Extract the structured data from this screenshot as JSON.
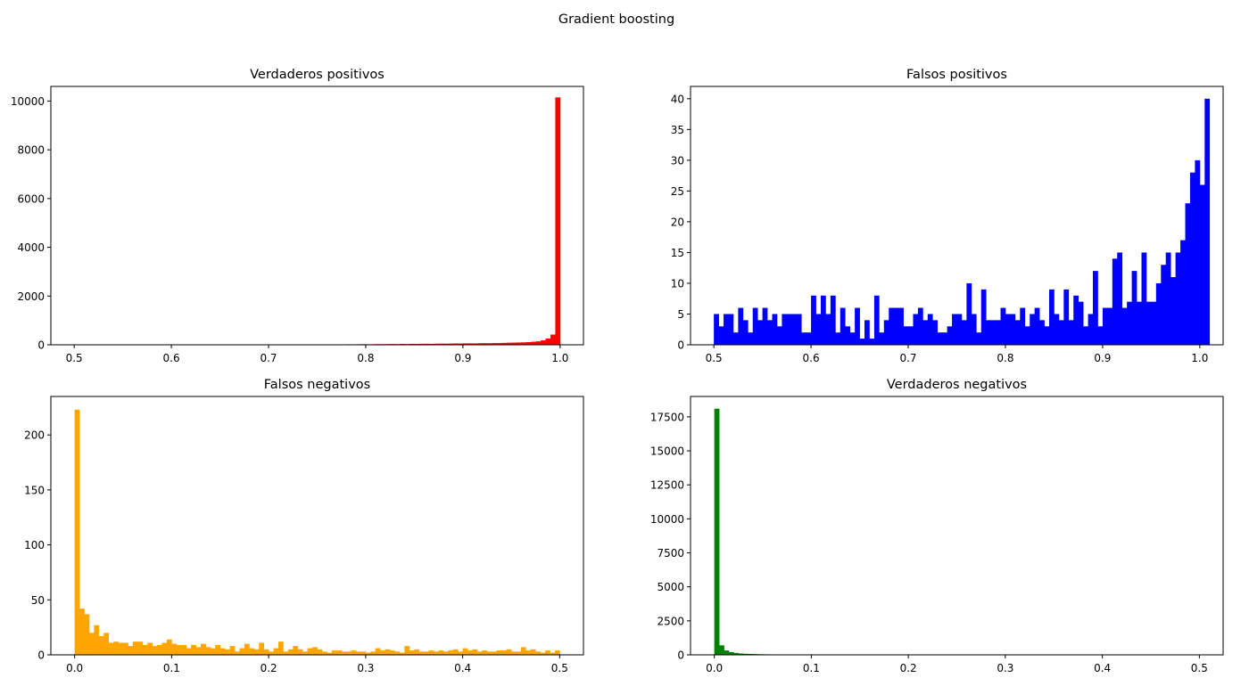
{
  "figure": {
    "suptitle": "Gradient boosting"
  },
  "chart_data": [
    {
      "type": "bar",
      "title": "Verdaderos positivos",
      "color": "#ff0000",
      "xlim": [
        0.476,
        1.024
      ],
      "ylim": [
        0,
        10600
      ],
      "xticks": [
        0.5,
        0.6,
        0.7,
        0.8,
        0.9,
        1.0
      ],
      "xtick_labels": [
        "0.5",
        "0.6",
        "0.7",
        "0.8",
        "0.9",
        "1.0"
      ],
      "yticks": [
        0,
        2000,
        4000,
        6000,
        8000,
        10000
      ],
      "ytick_labels": [
        "0",
        "2000",
        "4000",
        "6000",
        "8000",
        "10000"
      ],
      "bin_start": 0.5,
      "bin_width": 0.005,
      "values": [
        1,
        0,
        0,
        1,
        0,
        1,
        0,
        0,
        1,
        0,
        1,
        0,
        0,
        1,
        0,
        1,
        1,
        0,
        1,
        2,
        1,
        0,
        1,
        1,
        2,
        1,
        2,
        1,
        2,
        3,
        2,
        3,
        1,
        2,
        3,
        4,
        3,
        5,
        4,
        6,
        5,
        7,
        6,
        8,
        7,
        9,
        10,
        12,
        10,
        14,
        8,
        12,
        15,
        18,
        12,
        16,
        20,
        18,
        22,
        25,
        20,
        24,
        28,
        26,
        30,
        32,
        28,
        35,
        30,
        38,
        36,
        40,
        42,
        38,
        45,
        48,
        46,
        50,
        55,
        52,
        58,
        60,
        56,
        62,
        66,
        64,
        70,
        72,
        78,
        85,
        90,
        95,
        100,
        110,
        125,
        140,
        180,
        260,
        420,
        10150
      ]
    },
    {
      "type": "bar",
      "title": "Falsos positivos",
      "color": "#0000ff",
      "xlim": [
        0.476,
        1.024
      ],
      "ylim": [
        0,
        42
      ],
      "xticks": [
        0.5,
        0.6,
        0.7,
        0.8,
        0.9,
        1.0
      ],
      "xtick_labels": [
        "0.5",
        "0.6",
        "0.7",
        "0.8",
        "0.9",
        "1.0"
      ],
      "yticks": [
        0,
        5,
        10,
        15,
        20,
        25,
        30,
        35,
        40
      ],
      "ytick_labels": [
        "0",
        "5",
        "10",
        "15",
        "20",
        "25",
        "30",
        "35",
        "40"
      ],
      "bin_start": 0.5,
      "bin_width": 0.005,
      "values": [
        5,
        3,
        5,
        5,
        2,
        6,
        4,
        2,
        6,
        4,
        6,
        4,
        5,
        3,
        5,
        5,
        5,
        5,
        2,
        2,
        8,
        5,
        8,
        5,
        8,
        2,
        6,
        3,
        2,
        6,
        1,
        4,
        1,
        8,
        2,
        4,
        6,
        6,
        6,
        3,
        3,
        5,
        6,
        4,
        5,
        4,
        2,
        2,
        3,
        5,
        5,
        4,
        10,
        5,
        2,
        9,
        4,
        4,
        4,
        6,
        5,
        5,
        4,
        6,
        3,
        5,
        6,
        4,
        3,
        9,
        5,
        4,
        9,
        4,
        8,
        7,
        3,
        5,
        12,
        3,
        6,
        6,
        14,
        15,
        6,
        7,
        12,
        7,
        15,
        7,
        7,
        10,
        13,
        15,
        11,
        15,
        17,
        23,
        28,
        30,
        26,
        40
      ]
    },
    {
      "type": "bar",
      "title": "Falsos negativos",
      "color": "#ffa500",
      "xlim": [
        -0.0245,
        0.5245
      ],
      "ylim": [
        0,
        235
      ],
      "xticks": [
        0.0,
        0.1,
        0.2,
        0.3,
        0.4,
        0.5
      ],
      "xtick_labels": [
        "0.0",
        "0.1",
        "0.2",
        "0.3",
        "0.4",
        "0.5"
      ],
      "yticks": [
        0,
        50,
        100,
        150,
        200
      ],
      "ytick_labels": [
        "0",
        "50",
        "100",
        "150",
        "200"
      ],
      "bin_start": 0.0,
      "bin_width": 0.005,
      "values": [
        223,
        42,
        37,
        20,
        27,
        17,
        20,
        11,
        12,
        11,
        11,
        8,
        12,
        12,
        9,
        11,
        8,
        9,
        11,
        14,
        10,
        9,
        9,
        6,
        9,
        7,
        10,
        7,
        6,
        9,
        6,
        5,
        8,
        3,
        6,
        10,
        6,
        5,
        11,
        5,
        3,
        6,
        12,
        3,
        5,
        8,
        5,
        3,
        6,
        7,
        5,
        3,
        2,
        4,
        4,
        3,
        3,
        4,
        3,
        3,
        2,
        3,
        6,
        4,
        5,
        4,
        3,
        2,
        8,
        4,
        5,
        3,
        3,
        4,
        3,
        4,
        3,
        4,
        5,
        3,
        6,
        4,
        5,
        3,
        4,
        3,
        3,
        4,
        4,
        5,
        3,
        3,
        7,
        4,
        5,
        3,
        2,
        4,
        2,
        4
      ]
    },
    {
      "type": "bar",
      "title": "Verdaderos negativos",
      "color": "#008000",
      "xlim": [
        -0.0245,
        0.5245
      ],
      "ylim": [
        0,
        19000
      ],
      "xticks": [
        0.0,
        0.1,
        0.2,
        0.3,
        0.4,
        0.5
      ],
      "xtick_labels": [
        "0.0",
        "0.1",
        "0.2",
        "0.3",
        "0.4",
        "0.5"
      ],
      "yticks": [
        0,
        2500,
        5000,
        7500,
        10000,
        12500,
        15000,
        17500
      ],
      "ytick_labels": [
        "0",
        "2500",
        "5000",
        "7500",
        "10000",
        "12500",
        "15000",
        "17500"
      ],
      "bin_start": 0.0,
      "bin_width": 0.005,
      "values": [
        18100,
        700,
        320,
        200,
        140,
        100,
        80,
        65,
        55,
        45,
        40,
        35,
        30,
        28,
        25,
        22,
        20,
        18,
        17,
        16,
        15,
        14,
        13,
        12,
        12,
        11,
        10,
        10,
        9,
        9,
        8,
        8,
        8,
        7,
        7,
        7,
        6,
        6,
        6,
        6,
        5,
        5,
        5,
        5,
        5,
        5,
        4,
        4,
        4,
        4,
        4,
        4,
        4,
        4,
        3,
        3,
        3,
        3,
        3,
        3,
        3,
        3,
        3,
        3,
        3,
        2,
        2,
        2,
        2,
        2,
        2,
        2,
        2,
        2,
        2,
        2,
        2,
        2,
        2,
        2,
        2,
        2,
        2,
        2,
        2,
        2,
        2,
        2,
        2,
        2,
        2,
        2,
        2,
        2,
        2,
        2,
        2,
        2,
        2,
        2
      ]
    }
  ]
}
